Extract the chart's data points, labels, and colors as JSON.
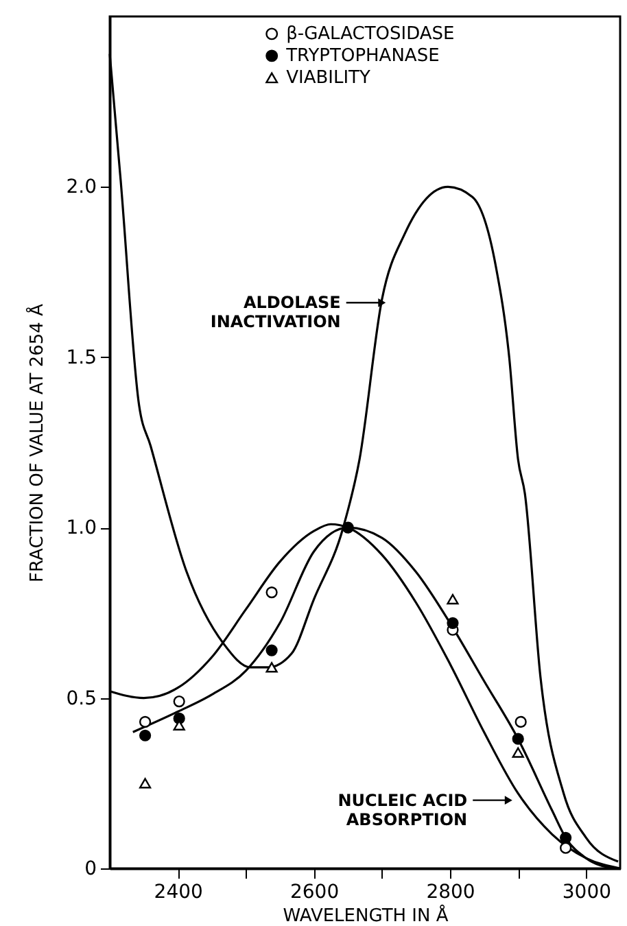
{
  "chart_data": {
    "type": "scatter",
    "xlabel": "WAVELENGTH IN Å",
    "ylabel": "FRACTION OF VALUE AT 2654 Å",
    "xlim": [
      2300,
      3050
    ],
    "ylim": [
      0,
      2.5
    ],
    "xticks": [
      2400,
      {
        "value": 2500,
        "label": null
      },
      2600,
      {
        "value": 2700,
        "label": null
      },
      2800,
      {
        "value": 2900,
        "label": null
      },
      3000
    ],
    "yticks": [
      0,
      0.5,
      {
        "value": 1,
        "label": "1.0"
      },
      1.5,
      {
        "value": 2,
        "label": "2.0"
      }
    ],
    "grid": false,
    "legend": "top",
    "series": [
      {
        "name": "β-GALACTOSIDASE",
        "marker": "circle",
        "color": "#ffffff",
        "x": [
          2352,
          2402,
          2538,
          2650,
          2804,
          2904,
          2970
        ],
        "values": [
          0.43,
          0.49,
          0.81,
          null,
          0.7,
          0.43,
          0.06
        ]
      },
      {
        "name": "TRYPTOPHANASE",
        "marker": "circle",
        "color": "#000000",
        "x": [
          2352,
          2402,
          2538,
          2650,
          2804,
          2900,
          2970
        ],
        "values": [
          0.39,
          0.44,
          0.64,
          1.0,
          0.72,
          0.38,
          0.09
        ]
      },
      {
        "name": "VIABILITY",
        "marker": "triangle",
        "color": "#ffffff",
        "x": [
          2352,
          2402,
          2538,
          2804,
          2900
        ],
        "values": [
          0.25,
          0.42,
          0.59,
          0.79,
          0.34
        ]
      },
      {
        "type": "line",
        "marker": "none",
        "line_style": "solid",
        "color": "#000000",
        "x": [
          2334,
          2400,
          2450,
          2500,
          2550,
          2600,
          2650,
          2700,
          2750,
          2800,
          2850,
          2900,
          2950,
          2970,
          3000,
          3040
        ],
        "values": [
          0.4,
          0.46,
          0.51,
          0.58,
          0.72,
          0.93,
          1.0,
          0.97,
          0.87,
          0.72,
          0.55,
          0.38,
          0.17,
          0.09,
          0.03,
          0.0
        ]
      },
      {
        "type": "line",
        "marker": "none",
        "line_style": "solid",
        "color": "#000000",
        "x": [
          2300,
          2350,
          2400,
          2450,
          2500,
          2550,
          2600,
          2625,
          2650,
          2700,
          2750,
          2800,
          2850,
          2900,
          2950,
          3000,
          3050
        ],
        "values": [
          0.52,
          0.5,
          0.53,
          0.62,
          0.76,
          0.9,
          0.99,
          1.01,
          1.0,
          0.92,
          0.78,
          0.6,
          0.4,
          0.22,
          0.1,
          0.03,
          0.0
        ]
      },
      {
        "type": "line",
        "marker": "none",
        "line_style": "solid",
        "color": "#000000",
        "x": [
          2300,
          2316,
          2343,
          2360,
          2413,
          2467,
          2507,
          2533,
          2567,
          2600,
          2643,
          2667,
          2700,
          2733,
          2797,
          2833,
          2867,
          2887,
          2900,
          2910,
          2933,
          2967,
          3000,
          3047
        ],
        "values": [
          2.39,
          2.02,
          1.36,
          1.24,
          0.87,
          0.66,
          0.59,
          0.59,
          0.63,
          0.79,
          1.0,
          1.2,
          1.67,
          1.86,
          2.0,
          1.97,
          1.77,
          1.5,
          1.2,
          1.1,
          0.56,
          0.22,
          0.09,
          0.02
        ]
      }
    ],
    "annotations": [
      {
        "text": "ALDOLASE\nINACTIVATION",
        "x": 2700,
        "y": 1.66
      },
      {
        "text": "NUCLEIC ACID\nABSORPTION",
        "x": 2886,
        "y": 0.2
      }
    ]
  }
}
